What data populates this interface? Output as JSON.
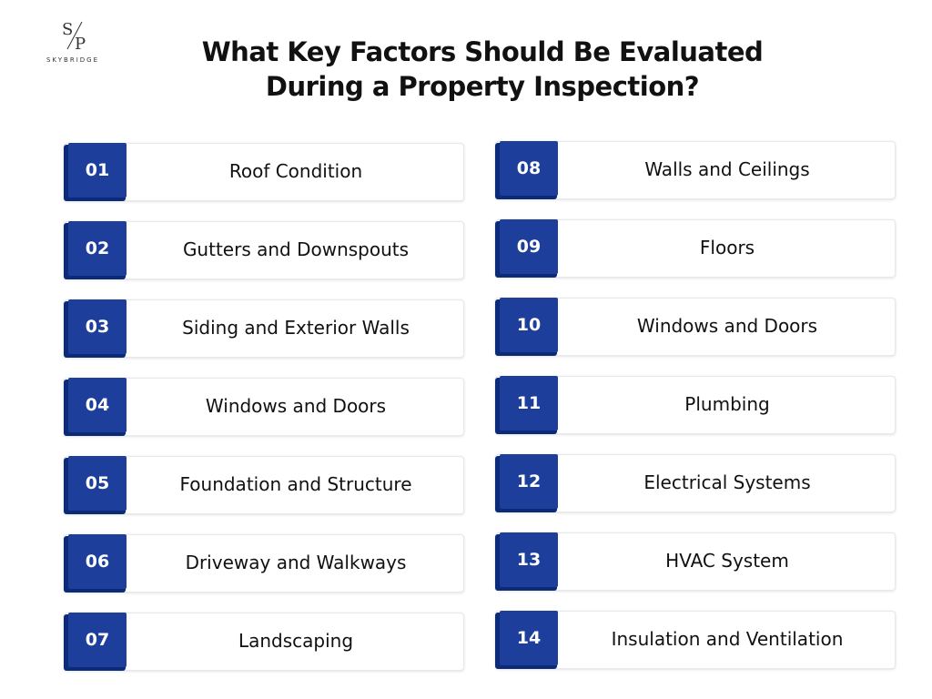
{
  "logo": {
    "mark": "S/P",
    "text": "SKYBRIDGE"
  },
  "title": {
    "line1": "What Key Factors Should Be Evaluated",
    "line2": "During a Property Inspection?"
  },
  "left_items": [
    {
      "number": "01",
      "label": "Roof Condition"
    },
    {
      "number": "02",
      "label": "Gutters and Downspouts"
    },
    {
      "number": "03",
      "label": "Siding and Exterior Walls"
    },
    {
      "number": "04",
      "label": "Windows and Doors"
    },
    {
      "number": "05",
      "label": "Foundation and Structure"
    },
    {
      "number": "06",
      "label": "Driveway and Walkways"
    },
    {
      "number": "07",
      "label": "Landscaping"
    }
  ],
  "right_items": [
    {
      "number": "08",
      "label": "Walls and Ceilings"
    },
    {
      "number": "09",
      "label": "Floors"
    },
    {
      "number": "10",
      "label": "Windows and Doors"
    },
    {
      "number": "11",
      "label": "Plumbing"
    },
    {
      "number": "12",
      "label": "Electrical Systems"
    },
    {
      "number": "13",
      "label": "HVAC System"
    },
    {
      "number": "14",
      "label": "Insulation and Ventilation"
    }
  ],
  "colors": {
    "badge": "#1d3f9b",
    "badge_shadow": "#0b2a78",
    "card_border": "#e6e9ef"
  }
}
